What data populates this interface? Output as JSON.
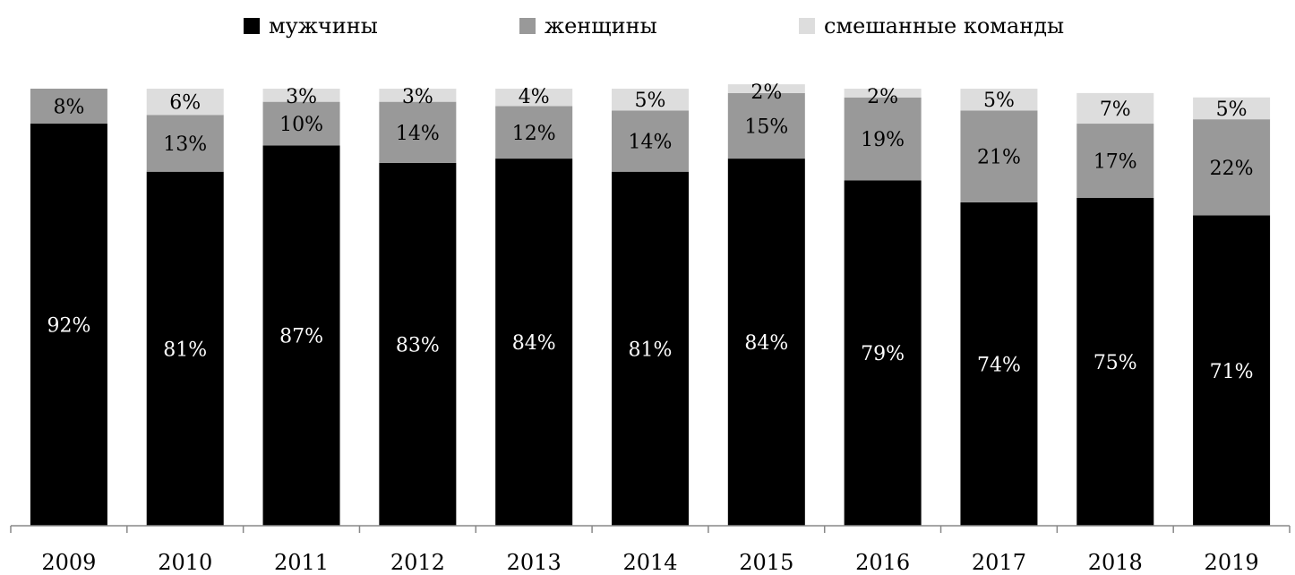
{
  "chart_data": {
    "type": "bar",
    "stacked": true,
    "percent": true,
    "categories": [
      "2009",
      "2010",
      "2011",
      "2012",
      "2013",
      "2014",
      "2015",
      "2016",
      "2017",
      "2018",
      "2019"
    ],
    "series": [
      {
        "name": "мужчины",
        "color": "#000000",
        "values": [
          92,
          81,
          87,
          83,
          84,
          81,
          84,
          79,
          74,
          75,
          71
        ],
        "labels": [
          "92%",
          "81%",
          "87%",
          "83%",
          "84%",
          "81%",
          "84%",
          "79%",
          "74%",
          "75%",
          "71%"
        ]
      },
      {
        "name": "женщины",
        "color": "#999999",
        "values": [
          8,
          13,
          10,
          14,
          12,
          14,
          15,
          19,
          21,
          17,
          22
        ],
        "labels": [
          "8%",
          "13%",
          "10%",
          "14%",
          "12%",
          "14%",
          "15%",
          "19%",
          "21%",
          "17%",
          "22%"
        ]
      },
      {
        "name": "смешанные команды",
        "color": "#dddddd",
        "values": [
          0,
          6,
          3,
          3,
          4,
          5,
          2,
          2,
          5,
          7,
          5
        ],
        "labels": [
          "",
          "6%",
          "3%",
          "3%",
          "4%",
          "5%",
          "2%",
          "2%",
          "5%",
          "7%",
          "5%"
        ]
      }
    ],
    "title": "",
    "xlabel": "",
    "ylabel": "",
    "ylim": [
      0,
      100
    ],
    "grid": false,
    "legend": "top"
  }
}
